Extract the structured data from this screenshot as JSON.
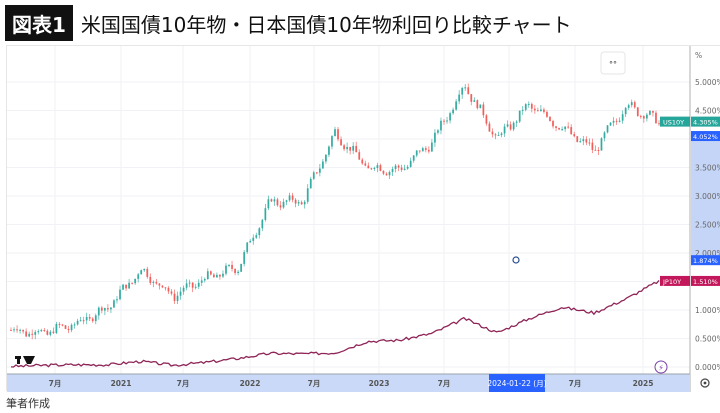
{
  "header": {
    "badge": "図表1",
    "title": "米国国債10年物・日本国債10年物利回り比較チャート"
  },
  "footer": {
    "source": "筆者作成"
  },
  "chart_toolbar": {
    "toggle_icon": "°°",
    "settings_icon": "gear-icon",
    "lightning_icon": "⚡",
    "logo": "TV"
  },
  "y_axis": {
    "unit": "%",
    "ticks": [
      "5.000%",
      "4.500%",
      "3.500%",
      "3.000%",
      "2.500%",
      "2.000%",
      "1.000%",
      "0.500%",
      "0.000%"
    ]
  },
  "price_labels": {
    "us10y": {
      "name": "US10Y",
      "value": "4.305%",
      "color": "#26a69a"
    },
    "cursor_high": {
      "value": "4.052%",
      "color": "#2962ff"
    },
    "cursor_low": {
      "value": "1.874%",
      "color": "#2962ff"
    },
    "jp10y": {
      "name": "JP10Y",
      "value": "1.510%",
      "color": "#c2185b"
    }
  },
  "x_axis": {
    "ticks": [
      "7月",
      "2021",
      "7月",
      "2022",
      "7月",
      "2023",
      "7月",
      "2024-01-22 (月)",
      "7月",
      "2025"
    ]
  },
  "chart_data": {
    "type": "line",
    "title": "米国国債10年物・日本国債10年物利回り比較チャート",
    "xlabel": "",
    "ylabel": "%",
    "ylim": [
      0,
      5.15
    ],
    "grid": true,
    "legend_position": "right-axis-labels",
    "x": [
      "2020-04",
      "2020-07",
      "2020-10",
      "2021-01",
      "2021-04",
      "2021-07",
      "2021-10",
      "2022-01",
      "2022-04",
      "2022-07",
      "2022-10",
      "2023-01",
      "2023-04",
      "2023-07",
      "2023-10",
      "2024-01",
      "2024-04",
      "2024-07",
      "2024-10",
      "2025-01",
      "2025-02"
    ],
    "series": [
      {
        "name": "US10Y",
        "style": "candlestick",
        "color_up": "#26a69a",
        "color_down": "#ef5350",
        "values": [
          0.65,
          0.6,
          0.75,
          1.05,
          1.7,
          1.25,
          1.55,
          1.75,
          2.9,
          2.9,
          4.1,
          3.5,
          3.45,
          3.95,
          4.95,
          4.0,
          4.6,
          4.2,
          3.8,
          4.6,
          4.305
        ]
      },
      {
        "name": "JP10Y",
        "style": "line",
        "color": "#8e2457",
        "values": [
          0.01,
          0.03,
          0.04,
          0.04,
          0.1,
          0.03,
          0.08,
          0.15,
          0.24,
          0.23,
          0.25,
          0.45,
          0.47,
          0.59,
          0.85,
          0.6,
          0.85,
          1.05,
          0.95,
          1.2,
          1.51
        ]
      }
    ]
  }
}
